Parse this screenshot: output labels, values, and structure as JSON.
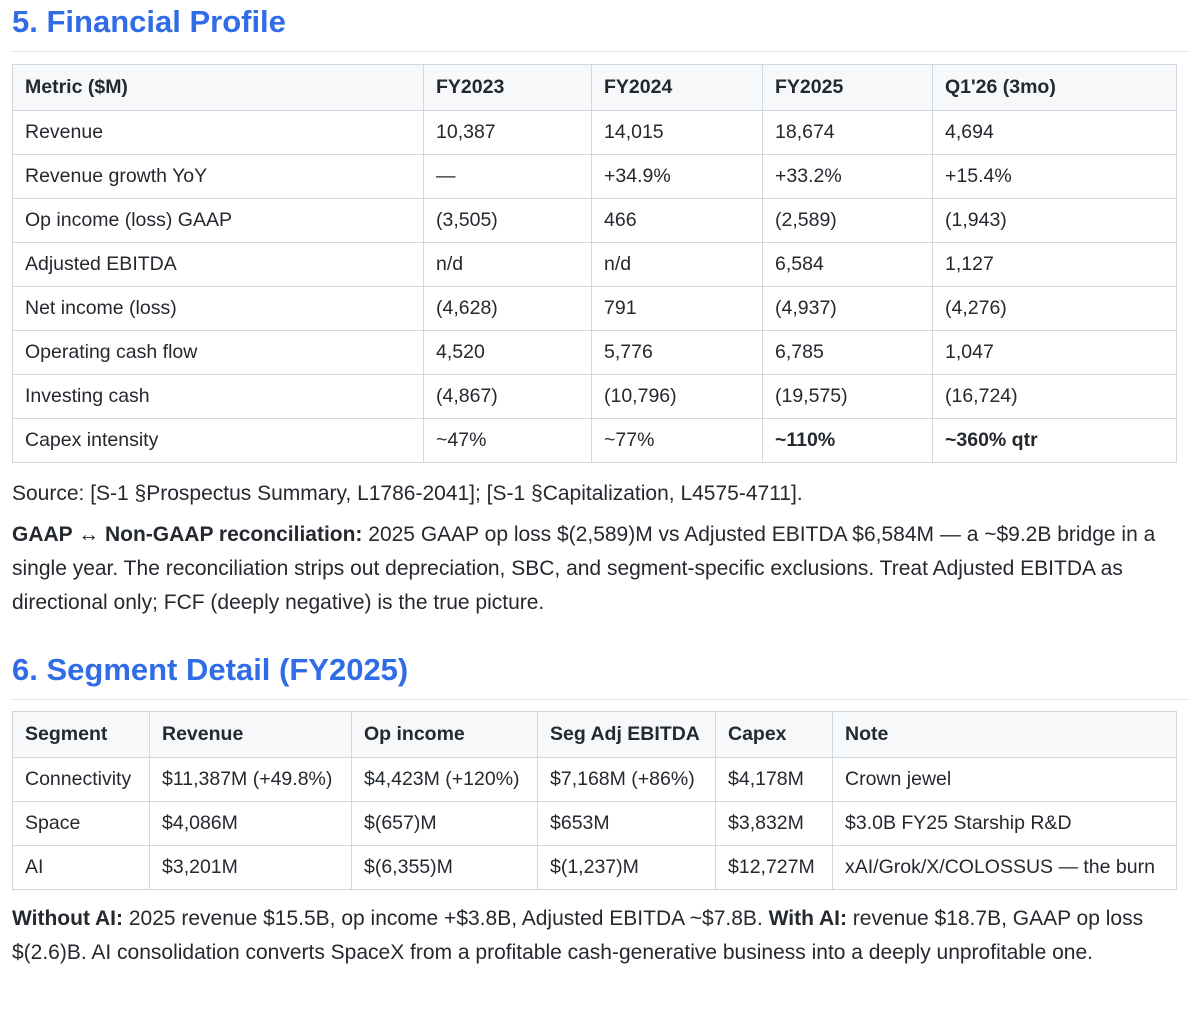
{
  "financial": {
    "heading": "5. Financial Profile",
    "headers": [
      "Metric ($M)",
      "FY2023",
      "FY2024",
      "FY2025",
      "Q1'26 (3mo)"
    ],
    "rows": [
      [
        "Revenue",
        "10,387",
        "14,015",
        "18,674",
        "4,694"
      ],
      [
        "Revenue growth YoY",
        "—",
        "+34.9%",
        "+33.2%",
        "+15.4%"
      ],
      [
        "Op income (loss) GAAP",
        "(3,505)",
        "466",
        "(2,589)",
        "(1,943)"
      ],
      [
        "Adjusted EBITDA",
        "n/d",
        "n/d",
        "6,584",
        "1,127"
      ],
      [
        "Net income (loss)",
        "(4,628)",
        "791",
        "(4,937)",
        "(4,276)"
      ],
      [
        "Operating cash flow",
        "4,520",
        "5,776",
        "6,785",
        "1,047"
      ],
      [
        "Investing cash",
        "(4,867)",
        "(10,796)",
        "(19,575)",
        "(16,724)"
      ],
      [
        "Capex intensity",
        "~47%",
        "~77%",
        "~110%",
        "~360% qtr"
      ]
    ],
    "source": "Source: [S-1 §Prospectus Summary, L1786-2041]; [S-1 §Capitalization, L4575-4711].",
    "recon_bold": "GAAP ↔ Non-GAAP reconciliation:",
    "recon_text": " 2025 GAAP op loss $(2,589)M vs Adjusted EBITDA $6,584M — a ~$9.2B bridge in a single year. The reconciliation strips out depreciation, SBC, and segment-specific exclusions. Treat Adjusted EBITDA as directional only; FCF (deeply negative) is the true picture."
  },
  "segment": {
    "heading": "6. Segment Detail (FY2025)",
    "headers": [
      "Segment",
      "Revenue",
      "Op income",
      "Seg Adj EBITDA",
      "Capex",
      "Note"
    ],
    "rows": [
      [
        "Connectivity",
        "$11,387M (+49.8%)",
        "$4,423M (+120%)",
        "$7,168M (+86%)",
        "$4,178M",
        "Crown jewel"
      ],
      [
        "Space",
        "$4,086M",
        "$(657)M",
        "$653M",
        "$3,832M",
        "$3.0B FY25 Starship R&D"
      ],
      [
        "AI",
        "$3,201M",
        "$(6,355)M",
        "$(1,237)M",
        "$12,727M",
        "xAI/Grok/X/COLOSSUS — the burn"
      ]
    ],
    "without_bold": "Without AI:",
    "without_text": " 2025 revenue $15.5B, op income +$3.8B, Adjusted EBITDA ~$7.8B. ",
    "with_bold": "With AI:",
    "with_text": " revenue $18.7B, GAAP op loss $(2.6)B. AI consolidation converts SpaceX from a profitable cash-generative business into a deeply unprofitable one."
  }
}
